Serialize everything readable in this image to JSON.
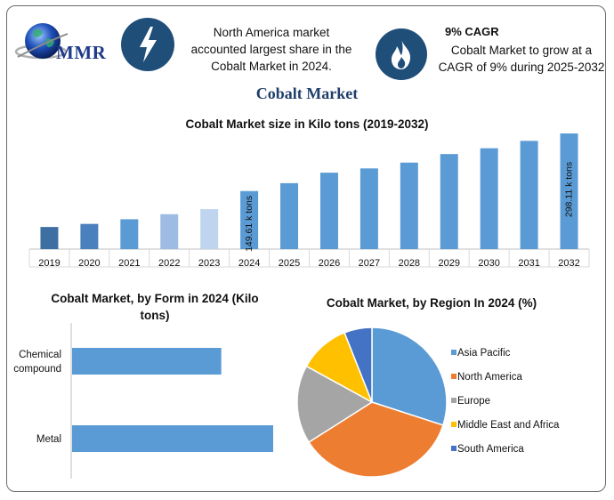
{
  "header": {
    "logo_text": "MMR",
    "stat1_text_lines": [
      "North America market",
      "accounted largest share in the",
      "Cobalt Market in 2024."
    ],
    "stat2_title": "9% CAGR",
    "stat2_text_lines": [
      "Cobalt Market to grow at a",
      "CAGR of 9% during 2025-2032"
    ],
    "icons": [
      "lightning-icon",
      "flame-icon"
    ]
  },
  "title": "Cobalt Market",
  "chart_data": [
    {
      "type": "bar",
      "title": "Cobalt Market size in Kilo tons (2019-2032)",
      "categories": [
        "2019",
        "2020",
        "2021",
        "2022",
        "2023",
        "2024",
        "2025",
        "2026",
        "2027",
        "2028",
        "2029",
        "2030",
        "2031",
        "2032"
      ],
      "values": [
        57,
        65,
        77,
        90,
        103,
        149.61,
        170,
        197,
        208,
        223,
        245,
        260,
        279,
        298.11
      ],
      "ylim": [
        0,
        310
      ],
      "annotations": [
        {
          "category": "2024",
          "text": "149.61 k tons"
        },
        {
          "category": "2032",
          "text": "298.11 k tons"
        }
      ],
      "colors": [
        "#3d6fa3",
        "#4a80bd",
        "#5b9bd5",
        "#9dbbe3",
        "#bfd4ee",
        "#5b9bd5",
        "#5b9bd5",
        "#5b9bd5",
        "#5b9bd5",
        "#5b9bd5",
        "#5b9bd5",
        "#5b9bd5",
        "#5b9bd5",
        "#5b9bd5"
      ]
    },
    {
      "type": "bar",
      "orientation": "horizontal",
      "title": "Cobalt Market, by Form in 2024 (Kilo tons)",
      "categories": [
        "Chemical compound",
        "Metal"
      ],
      "values": [
        92,
        124
      ],
      "xlim": [
        0,
        124
      ],
      "color": "#5b9bd5"
    },
    {
      "type": "pie",
      "title": "Cobalt Market, by Region In 2024 (%)",
      "labels": [
        "Asia Pacific",
        "North America",
        "Europe",
        "Middle East and Africa",
        "South America"
      ],
      "values": [
        30,
        36,
        17,
        11,
        6
      ],
      "colors": [
        "#5b9bd5",
        "#ed7d31",
        "#a5a5a5",
        "#ffc000",
        "#4472c4"
      ],
      "legend_position": "right"
    }
  ]
}
